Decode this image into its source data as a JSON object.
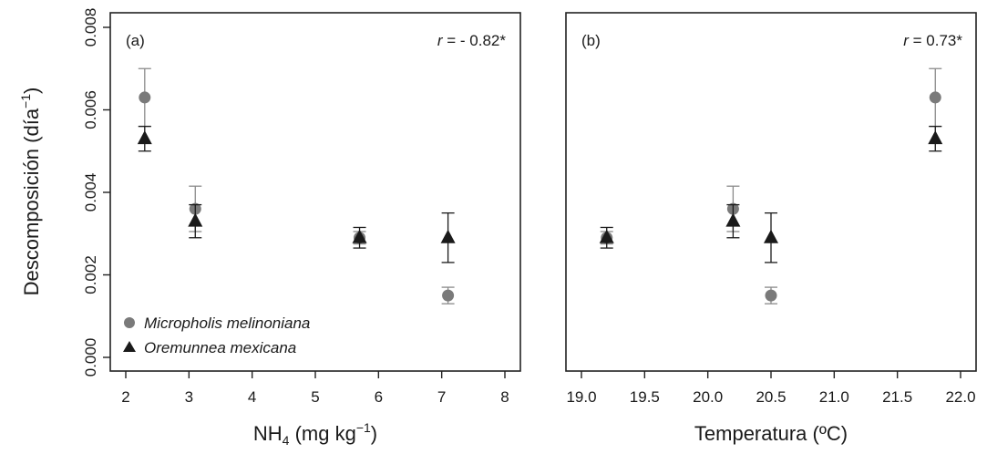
{
  "chart_data": [
    {
      "type": "scatter",
      "panel_label": "(a)",
      "annotation": "r = - 0.82*",
      "xlabel": "NH4 (mg kg-1)",
      "ylabel": "Descomposición (día-1)",
      "xlim": [
        2,
        8
      ],
      "ylim": [
        0,
        0.008
      ],
      "x_ticks": [
        2,
        3,
        4,
        5,
        6,
        7,
        8
      ],
      "y_ticks": [
        0.0,
        0.002,
        0.004,
        0.006,
        0.008
      ],
      "x_tick_labels": [
        "2",
        "3",
        "4",
        "5",
        "6",
        "7",
        "8"
      ],
      "y_tick_labels": [
        "0.000",
        "0.002",
        "0.004",
        "0.006",
        "0.008"
      ],
      "grid": false,
      "legend_position": "bottom-left",
      "series": [
        {
          "name": "Micropholis melinoniana",
          "marker": "circle",
          "color": "#7a7a7a",
          "points": [
            {
              "x": 2.3,
              "y": 0.0063,
              "err": 0.0007
            },
            {
              "x": 3.1,
              "y": 0.0036,
              "err": 0.00055
            },
            {
              "x": 5.7,
              "y": 0.0029,
              "err": 0.00015
            },
            {
              "x": 7.1,
              "y": 0.0015,
              "err": 0.0002
            }
          ]
        },
        {
          "name": "Oremunnea mexicana",
          "marker": "triangle",
          "color": "#1a1a1a",
          "points": [
            {
              "x": 2.3,
              "y": 0.0053,
              "err": 0.0003
            },
            {
              "x": 3.1,
              "y": 0.0033,
              "err": 0.0004
            },
            {
              "x": 5.7,
              "y": 0.0029,
              "err": 0.00025
            },
            {
              "x": 7.1,
              "y": 0.0029,
              "err": 0.0006
            }
          ]
        }
      ]
    },
    {
      "type": "scatter",
      "panel_label": "(b)",
      "annotation": "r = 0.73*",
      "xlabel": "Temperatura (ºC)",
      "xlim": [
        19,
        22
      ],
      "ylim": [
        0,
        0.008
      ],
      "x_ticks": [
        19.0,
        19.5,
        20.0,
        20.5,
        21.0,
        21.5,
        22.0
      ],
      "x_tick_labels": [
        "19.0",
        "19.5",
        "20.0",
        "20.5",
        "21.0",
        "21.5",
        "22.0"
      ],
      "grid": false,
      "series": [
        {
          "name": "Micropholis melinoniana",
          "marker": "circle",
          "color": "#7a7a7a",
          "points": [
            {
              "x": 19.2,
              "y": 0.0029,
              "err": 0.00015
            },
            {
              "x": 20.2,
              "y": 0.0036,
              "err": 0.00055
            },
            {
              "x": 20.5,
              "y": 0.0015,
              "err": 0.0002
            },
            {
              "x": 21.8,
              "y": 0.0063,
              "err": 0.0007
            }
          ]
        },
        {
          "name": "Oremunnea mexicana",
          "marker": "triangle",
          "color": "#1a1a1a",
          "points": [
            {
              "x": 19.2,
              "y": 0.0029,
              "err": 0.00025
            },
            {
              "x": 20.2,
              "y": 0.0033,
              "err": 0.0004
            },
            {
              "x": 20.5,
              "y": 0.0029,
              "err": 0.0006
            },
            {
              "x": 21.8,
              "y": 0.0053,
              "err": 0.0003
            }
          ]
        }
      ]
    }
  ],
  "text": {
    "ylabel_main": "Descomposición (día",
    "ylabel_exp": "−1",
    "ylabel_close": ")",
    "xlabel_a_main": "NH",
    "xlabel_a_sub": "4",
    "xlabel_a_rest": " (mg kg",
    "xlabel_a_exp": "−1",
    "xlabel_a_close": ")",
    "xlabel_b": "Temperatura (ºC)",
    "corr_a_r": "r",
    "corr_a_val": " = - 0.82*",
    "corr_b_r": "r",
    "corr_b_val": " = 0.73*",
    "legend_1": "Micropholis melinoniana",
    "legend_2": "Oremunnea mexicana"
  }
}
